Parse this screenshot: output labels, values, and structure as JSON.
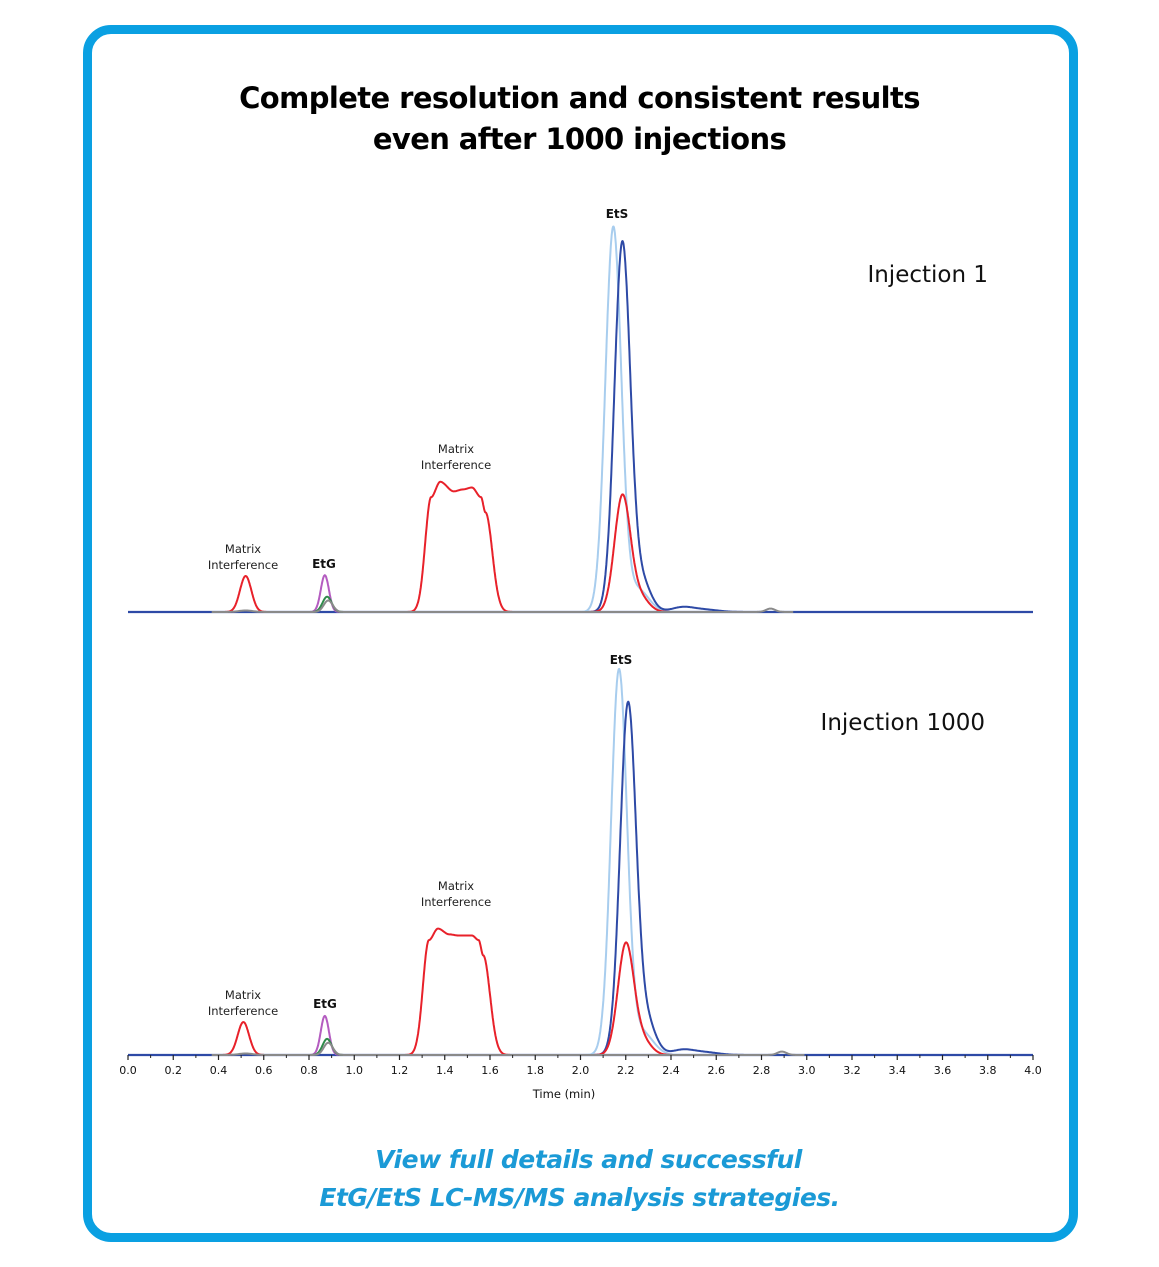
{
  "title": {
    "line1": "Complete resolution and consistent results",
    "line2": "even after 1000 injections"
  },
  "footer": {
    "line1": "View full details and successful",
    "line2": "EtG/EtS LC-MS/MS analysis strategies."
  },
  "colors": {
    "frame": "#0aa0e2",
    "footer_text": "#1b9ad6",
    "matrix_red": "#e8212a",
    "ets_light_blue": "#a8cdee",
    "ets_dark_blue": "#2e4aa6",
    "etg_magenta": "#b45cc0",
    "etg_green": "#2f8a4a",
    "etg_gray": "#8a8a8a"
  },
  "chart_data": [
    {
      "type": "line",
      "title": "Injection 1",
      "xlabel": "",
      "ylabel": "",
      "xlim": [
        0.0,
        4.0
      ],
      "ylim": [
        0,
        105
      ],
      "grid": false,
      "annotations": [
        {
          "text_line1": "Matrix",
          "text_line2": "Interference",
          "x": 0.55
        },
        {
          "text_line1": "",
          "text_line2": "EtG",
          "x": 0.87,
          "bold": true
        },
        {
          "text_line1": "Matrix",
          "text_line2": "Interference",
          "x": 1.45
        },
        {
          "text_line1": "",
          "text_line2": "EtS",
          "x": 2.15,
          "bold": true
        }
      ],
      "series": [
        {
          "name": "EtS light blue trace",
          "color_key": "ets_light_blue",
          "peaks": [
            {
              "rt": 2.145,
              "height": 100,
              "width": 0.035
            },
            {
              "rt": 2.25,
              "height": 6,
              "width": 0.05
            }
          ]
        },
        {
          "name": "EtS dark blue trace",
          "color_key": "ets_dark_blue",
          "peaks": [
            {
              "rt": 2.185,
              "height": 96,
              "width": 0.035
            },
            {
              "rt": 2.27,
              "height": 8,
              "width": 0.04
            },
            {
              "rt": 2.45,
              "height": 1.2,
              "width": 0.05
            },
            {
              "rt": 2.55,
              "height": 0.6,
              "width": 0.06
            }
          ]
        },
        {
          "name": "EtS red trace",
          "color_key": "matrix_red",
          "peaks": [
            {
              "rt": 2.185,
              "height": 30,
              "width": 0.035
            },
            {
              "rt": 2.26,
              "height": 4,
              "width": 0.04
            }
          ]
        },
        {
          "name": "Matrix red trace early",
          "color_key": "matrix_red",
          "peaks": [
            {
              "rt": 0.52,
              "height": 9.4,
              "width": 0.025
            }
          ]
        },
        {
          "name": "Matrix red trace broad",
          "color_key": "matrix_red",
          "plateau": {
            "start": 1.34,
            "end": 1.58,
            "edge": 0.025,
            "points": [
              [
                1.34,
                30
              ],
              [
                1.38,
                34
              ],
              [
                1.44,
                31.5
              ],
              [
                1.48,
                32
              ],
              [
                1.52,
                32.5
              ],
              [
                1.56,
                30
              ],
              [
                1.58,
                26
              ]
            ]
          }
        },
        {
          "name": "EtG magenta trace",
          "color_key": "etg_magenta",
          "peaks": [
            {
              "rt": 0.87,
              "height": 9.6,
              "width": 0.018
            }
          ]
        },
        {
          "name": "EtG green trace",
          "color_key": "etg_green",
          "peaks": [
            {
              "rt": 0.88,
              "height": 4.0,
              "width": 0.02
            }
          ]
        },
        {
          "name": "EtG gray trace",
          "color_key": "etg_gray",
          "peaks": [
            {
              "rt": 0.885,
              "height": 3.0,
              "width": 0.02
            },
            {
              "rt": 2.84,
              "height": 0.9,
              "width": 0.02
            },
            {
              "rt": 0.52,
              "height": 0.4,
              "width": 0.03
            }
          ]
        }
      ]
    },
    {
      "type": "line",
      "title": "Injection 1000",
      "xlabel": "Time (min)",
      "ylabel": "",
      "xlim": [
        0.0,
        4.0
      ],
      "ylim": [
        0,
        105
      ],
      "grid": false,
      "xticks": [
        "0.0",
        "0.2",
        "0.4",
        "0.6",
        "0.8",
        "1.0",
        "1.2",
        "1.4",
        "1.6",
        "1.8",
        "2.0",
        "2.2",
        "2.4",
        "2.6",
        "2.8",
        "3.0",
        "3.2",
        "3.4",
        "3.6",
        "3.8",
        "4.0"
      ],
      "annotations": [
        {
          "text_line1": "Matrix",
          "text_line2": "Interference",
          "x": 0.5
        },
        {
          "text_line1": "",
          "text_line2": "EtG",
          "x": 0.87,
          "bold": true
        },
        {
          "text_line1": "Matrix",
          "text_line2": "Interference",
          "x": 1.45
        },
        {
          "text_line1": "",
          "text_line2": "EtS",
          "x": 2.18,
          "bold": true
        }
      ],
      "series": [
        {
          "name": "EtS light blue trace",
          "color_key": "ets_light_blue",
          "peaks": [
            {
              "rt": 2.17,
              "height": 100,
              "width": 0.035
            },
            {
              "rt": 2.27,
              "height": 6,
              "width": 0.05
            }
          ]
        },
        {
          "name": "EtS dark blue trace",
          "color_key": "ets_dark_blue",
          "peaks": [
            {
              "rt": 2.21,
              "height": 91,
              "width": 0.035
            },
            {
              "rt": 2.29,
              "height": 9,
              "width": 0.04
            },
            {
              "rt": 2.45,
              "height": 1.3,
              "width": 0.05
            },
            {
              "rt": 2.55,
              "height": 0.7,
              "width": 0.06
            }
          ]
        },
        {
          "name": "EtS red trace",
          "color_key": "matrix_red",
          "peaks": [
            {
              "rt": 2.2,
              "height": 28.5,
              "width": 0.035
            },
            {
              "rt": 2.27,
              "height": 4,
              "width": 0.04
            }
          ]
        },
        {
          "name": "Matrix red trace early",
          "color_key": "matrix_red",
          "peaks": [
            {
              "rt": 0.51,
              "height": 8.6,
              "width": 0.025
            }
          ]
        },
        {
          "name": "Matrix red trace broad",
          "color_key": "matrix_red",
          "plateau": {
            "start": 1.33,
            "end": 1.57,
            "edge": 0.025,
            "points": [
              [
                1.33,
                30
              ],
              [
                1.37,
                33
              ],
              [
                1.42,
                31.5
              ],
              [
                1.46,
                31.2
              ],
              [
                1.52,
                31.2
              ],
              [
                1.55,
                30
              ],
              [
                1.57,
                26
              ]
            ]
          }
        },
        {
          "name": "EtG magenta trace",
          "color_key": "etg_magenta",
          "peaks": [
            {
              "rt": 0.87,
              "height": 10.2,
              "width": 0.018
            }
          ]
        },
        {
          "name": "EtG green trace",
          "color_key": "etg_green",
          "peaks": [
            {
              "rt": 0.88,
              "height": 4.2,
              "width": 0.02
            }
          ]
        },
        {
          "name": "EtG gray trace",
          "color_key": "etg_gray",
          "peaks": [
            {
              "rt": 0.885,
              "height": 3.2,
              "width": 0.02
            },
            {
              "rt": 2.89,
              "height": 0.9,
              "width": 0.02
            },
            {
              "rt": 0.52,
              "height": 0.4,
              "width": 0.03
            }
          ]
        }
      ]
    }
  ]
}
